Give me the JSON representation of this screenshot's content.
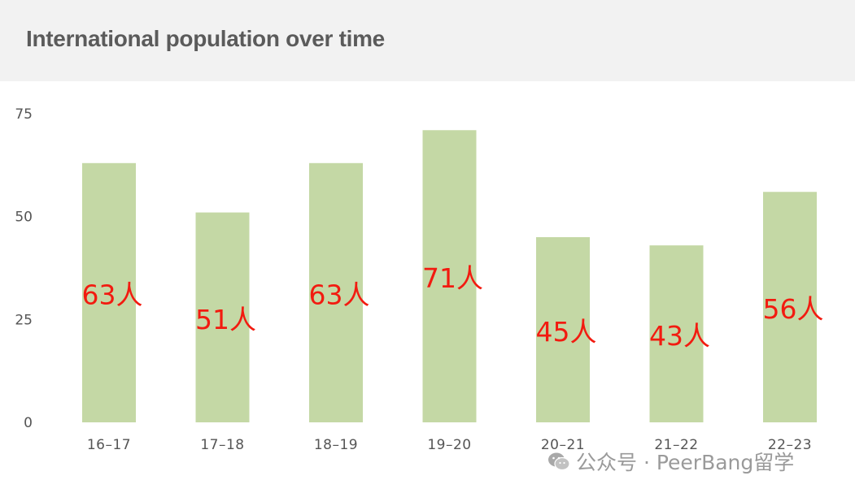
{
  "header": {
    "title": "International population over time"
  },
  "chart_data": {
    "type": "bar",
    "title": "International population over time",
    "xlabel": "",
    "ylabel": "",
    "categories": [
      "16–17",
      "17–18",
      "18–19",
      "19–20",
      "20–21",
      "21–22",
      "22–23"
    ],
    "values": [
      63,
      51,
      63,
      71,
      45,
      43,
      56
    ],
    "data_labels": [
      "63人",
      "51人",
      "63人",
      "71人",
      "45人",
      "43人",
      "56人"
    ],
    "yticks": [
      0,
      25,
      50,
      75
    ],
    "ylim": [
      0,
      75
    ],
    "grid": false,
    "legend": "none",
    "colors": {
      "bar": "#c4d8a5",
      "data_label": "#f21b10",
      "title": "#5b5b5b",
      "header_bg": "#f2f2f2"
    }
  },
  "watermark": {
    "text": "公众号 · PeerBang留学",
    "icon": "wechat-icon"
  }
}
